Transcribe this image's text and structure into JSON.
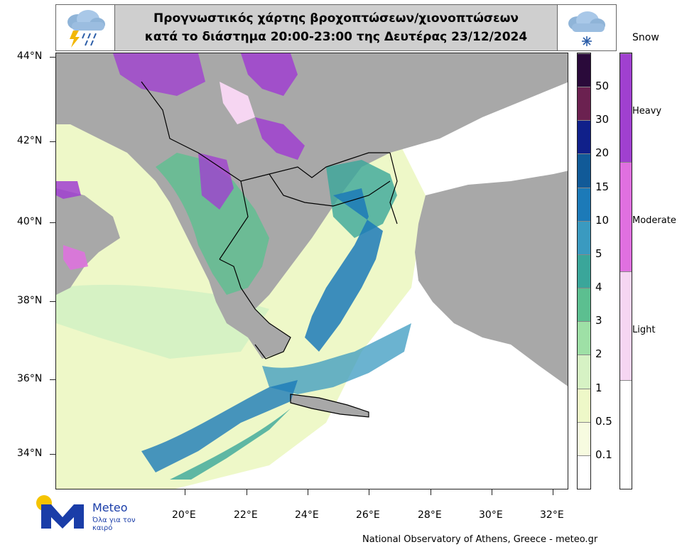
{
  "title": {
    "line1": "Προγνωστικός χάρτης βροχοπτώσεων/χιονοπτώσεων",
    "line2": "κατά το διάστημα  20:00-23:00 της Δευτέρας 23/12/2024"
  },
  "icons": {
    "left": "rain-thunder-cloud-icon",
    "right": "snow-cloud-icon"
  },
  "axes": {
    "lat_labels": [
      "44°N",
      "42°N",
      "40°N",
      "38°N",
      "36°N",
      "34°N"
    ],
    "lon_labels": [
      "20°E",
      "22°E",
      "24°E",
      "26°E",
      "28°E",
      "30°E",
      "32°E"
    ]
  },
  "precip_scale": {
    "labels": [
      "50",
      "30",
      "20",
      "15",
      "10",
      "5",
      "4",
      "3",
      "2",
      "1",
      "0.5",
      "0.1"
    ],
    "colors": [
      "#2a0a3a",
      "#6b2150",
      "#10208a",
      "#115a98",
      "#1c7ab8",
      "#3a9ac0",
      "#3aa69a",
      "#5cbf90",
      "#9ee0a6",
      "#d6f2c4",
      "#eef8c8",
      "#f7fbe0",
      "#ffffff"
    ]
  },
  "snow_scale": {
    "title": "Snow",
    "labels": [
      "Heavy",
      "Moderate",
      "Light"
    ],
    "colors": [
      "#a040d0",
      "#e070e0",
      "#f6d6f2",
      "#ffffff"
    ]
  },
  "logo": {
    "name": "Meteo",
    "tagline": "Όλα για τον καιρό"
  },
  "footer": "National Observatory of Athens, Greece - meteo.gr",
  "colors": {
    "land": "#a8a8a8",
    "sea": "#ffffff",
    "border": "#000000"
  }
}
